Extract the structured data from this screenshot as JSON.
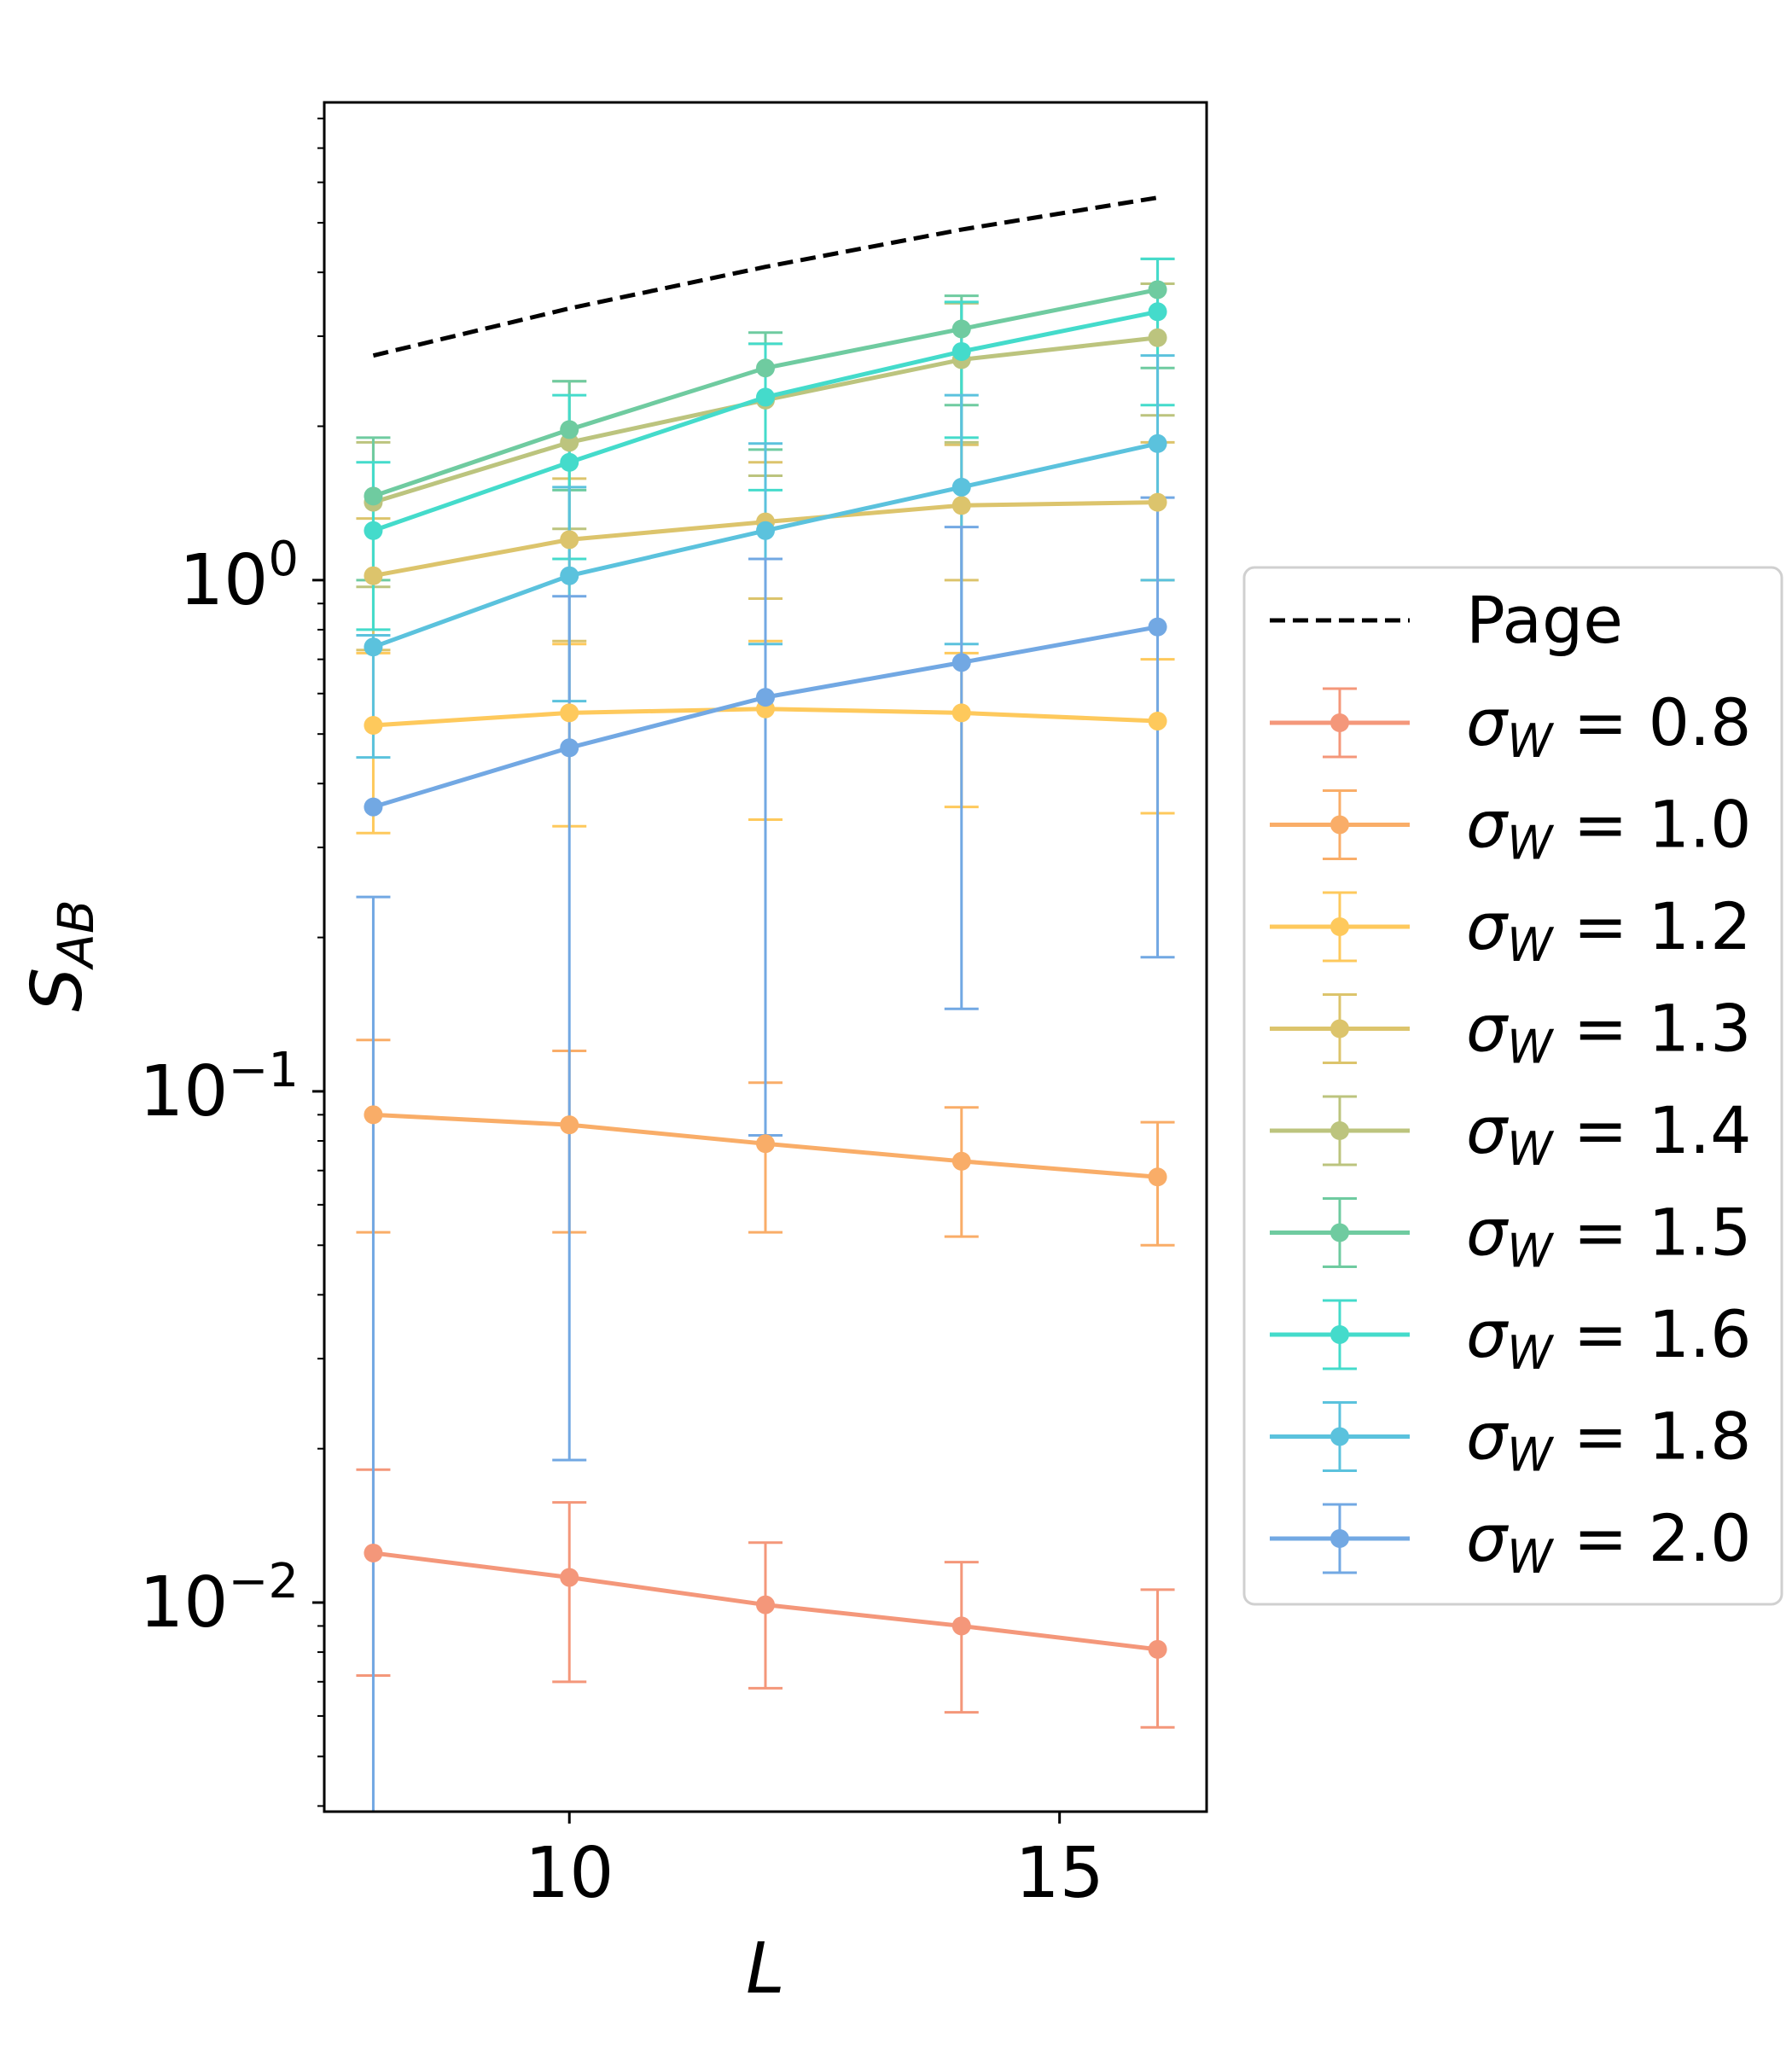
{
  "chart_data": {
    "type": "line",
    "title": "",
    "xlabel": "L",
    "ylabel_main": "S",
    "ylabel_sub": "AB",
    "xscale": "linear",
    "yscale": "log",
    "xlim": [
      7.5,
      16.5
    ],
    "ylim": [
      0.0039,
      8.6
    ],
    "grid": false,
    "legend_position": "outside-right",
    "x_ticks": [
      {
        "value": 10,
        "label": "10"
      },
      {
        "value": 15,
        "label": "15"
      }
    ],
    "y_ticks": [
      {
        "value": 1,
        "base": "10",
        "exp": "0"
      },
      {
        "value": 0.1,
        "base": "10",
        "exp": "−1"
      },
      {
        "value": 0.01,
        "base": "10",
        "exp": "−2"
      }
    ],
    "x": [
      8,
      10,
      12,
      14,
      16
    ],
    "page": {
      "name": "Page",
      "color": "#000000",
      "x": [
        8,
        10,
        12,
        14,
        16
      ],
      "values": [
        2.75,
        3.4,
        4.1,
        4.85,
        5.6
      ]
    },
    "series": [
      {
        "name": "0.8",
        "color": "#f4977a",
        "values": [
          0.0125,
          0.0112,
          0.0099,
          0.009,
          0.0081
        ],
        "lower": [
          0.0072,
          0.007,
          0.0068,
          0.0061,
          0.0057
        ],
        "upper": [
          0.0182,
          0.0157,
          0.0131,
          0.012,
          0.0106
        ]
      },
      {
        "name": "1.0",
        "color": "#f9ad68",
        "values": [
          0.09,
          0.086,
          0.079,
          0.073,
          0.068
        ],
        "lower": [
          0.053,
          0.053,
          0.053,
          0.052,
          0.05
        ],
        "upper": [
          0.126,
          0.12,
          0.104,
          0.093,
          0.087
        ]
      },
      {
        "name": "1.2",
        "color": "#fec95c",
        "values": [
          0.52,
          0.55,
          0.56,
          0.55,
          0.53
        ],
        "lower": [
          0.32,
          0.33,
          0.34,
          0.36,
          0.35
        ],
        "upper": [
          0.72,
          0.75,
          0.76,
          0.72,
          0.7
        ]
      },
      {
        "name": "1.3",
        "color": "#dcc46c",
        "values": [
          1.02,
          1.2,
          1.3,
          1.4,
          1.42
        ],
        "lower": [
          0.73,
          0.76,
          0.92,
          1.0,
          1.0
        ],
        "upper": [
          1.32,
          1.58,
          1.7,
          1.84,
          1.86
        ]
      },
      {
        "name": "1.4",
        "color": "#bcc47e",
        "values": [
          1.42,
          1.86,
          2.25,
          2.7,
          2.98
        ],
        "lower": [
          0.97,
          1.26,
          1.6,
          1.86,
          2.1
        ],
        "upper": [
          1.86,
          2.45,
          2.9,
          3.48,
          3.8
        ]
      },
      {
        "name": "1.5",
        "color": "#6fcba0",
        "values": [
          1.46,
          1.97,
          2.6,
          3.1,
          3.7
        ],
        "lower": [
          1.0,
          1.5,
          1.8,
          2.2,
          2.6
        ],
        "upper": [
          1.9,
          2.45,
          3.05,
          3.6,
          4.25
        ]
      },
      {
        "name": "1.6",
        "color": "#44dbcb",
        "values": [
          1.25,
          1.7,
          2.28,
          2.8,
          3.35
        ],
        "lower": [
          0.8,
          1.1,
          1.5,
          1.9,
          2.2
        ],
        "upper": [
          1.7,
          2.3,
          2.9,
          3.5,
          4.25
        ]
      },
      {
        "name": "1.8",
        "color": "#5bc2dd",
        "values": [
          0.74,
          1.02,
          1.25,
          1.52,
          1.85
        ],
        "lower": [
          0.45,
          0.58,
          0.75,
          0.75,
          1.0
        ],
        "upper": [
          0.78,
          1.52,
          1.85,
          2.3,
          2.75
        ]
      },
      {
        "name": "2.0",
        "color": "#72a8e3",
        "values": [
          0.36,
          0.47,
          0.59,
          0.69,
          0.81
        ],
        "lower": [
          0.0039,
          0.019,
          0.082,
          0.145,
          0.183
        ],
        "upper": [
          0.24,
          0.93,
          1.1,
          1.27,
          1.45
        ]
      }
    ],
    "legend_prefix": "σ",
    "legend_sub": "W",
    "legend_eq": " = "
  }
}
